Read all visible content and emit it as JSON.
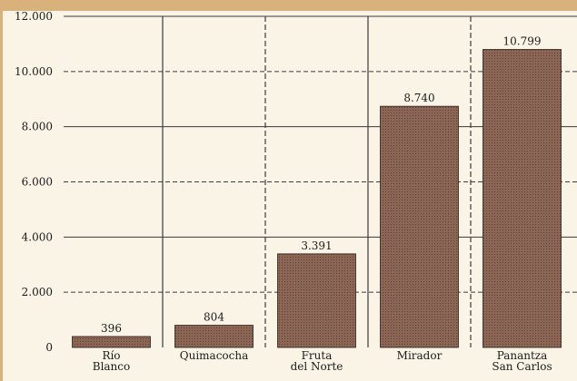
{
  "chart_data": {
    "type": "bar",
    "categories": [
      [
        "Río",
        "Blanco"
      ],
      [
        "Quimacocha"
      ],
      [
        "Fruta",
        "del Norte"
      ],
      [
        "Mirador"
      ],
      [
        "Panantza",
        "San Carlos"
      ]
    ],
    "values": [
      396,
      804,
      3391,
      8740,
      10799
    ],
    "value_labels": [
      "396",
      "804",
      "3.391",
      "8.740",
      "10.799"
    ],
    "y_ticks": [
      0,
      2000,
      4000,
      6000,
      8000,
      10000,
      12000
    ],
    "y_tick_labels": [
      "0",
      "2.000",
      "4.000",
      "6.000",
      "8.000",
      "10.000",
      "12.000"
    ],
    "ylim": [
      0,
      12000
    ],
    "grid": true,
    "colors": {
      "bar": "#8c6654",
      "bar_dot": "#5e3f32",
      "grid": "#3a3a3a",
      "background": "#faf4e6",
      "frame": "#d8b27a"
    }
  }
}
